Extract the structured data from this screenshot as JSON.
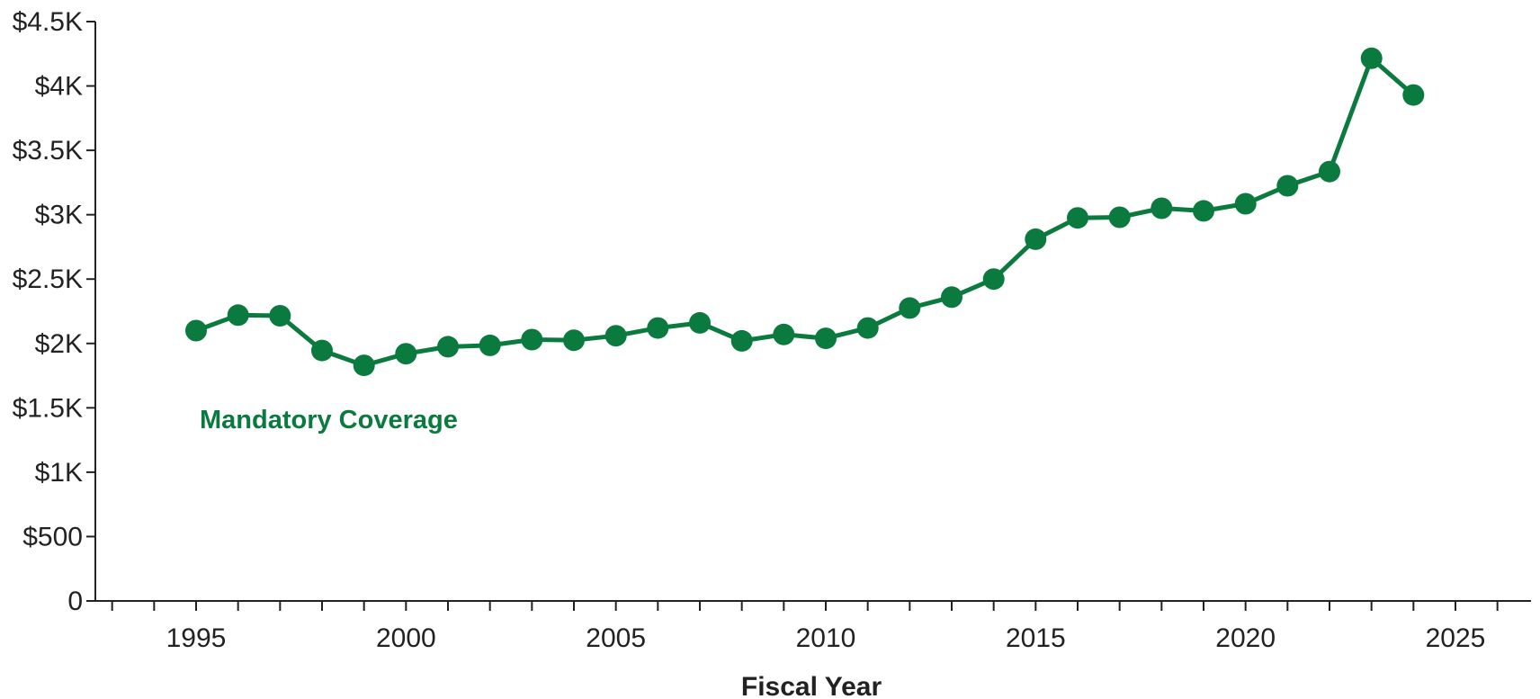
{
  "chart_data": {
    "type": "line",
    "xlabel": "Fiscal Year",
    "ylabel": "",
    "xlim": [
      1992.6,
      2026.8
    ],
    "ylim": [
      0,
      4500
    ],
    "x_ticks": [
      1995,
      2000,
      2005,
      2010,
      2015,
      2020,
      2025
    ],
    "x_tick_labels": [
      "1995",
      "2000",
      "2005",
      "2010",
      "2015",
      "2020",
      "2025"
    ],
    "y_ticks": [
      0,
      500,
      1000,
      1500,
      2000,
      2500,
      3000,
      3500,
      4000,
      4500
    ],
    "y_tick_labels": [
      "0",
      "$500",
      "$1K",
      "$1.5K",
      "$2K",
      "$2.5K",
      "$3K",
      "$3.5K",
      "$4K",
      "$4.5K"
    ],
    "grid": false,
    "series": [
      {
        "name": "Mandatory Coverage",
        "color": "#0b7a3e",
        "x": [
          1995,
          1996,
          1997,
          1998,
          1999,
          2000,
          2001,
          2002,
          2003,
          2004,
          2005,
          2006,
          2007,
          2008,
          2009,
          2010,
          2011,
          2012,
          2013,
          2014,
          2015,
          2016,
          2017,
          2018,
          2019,
          2020,
          2021,
          2022,
          2023,
          2024
        ],
        "values": [
          2100,
          2220,
          2215,
          1945,
          1830,
          1920,
          1975,
          1985,
          2030,
          2025,
          2060,
          2120,
          2160,
          2020,
          2070,
          2040,
          2120,
          2275,
          2360,
          2500,
          2810,
          2975,
          2980,
          3050,
          3030,
          3085,
          3225,
          3335,
          4215,
          3930
        ]
      }
    ],
    "annotations": [
      {
        "text": "Mandatory Coverage",
        "series": 0
      }
    ]
  }
}
